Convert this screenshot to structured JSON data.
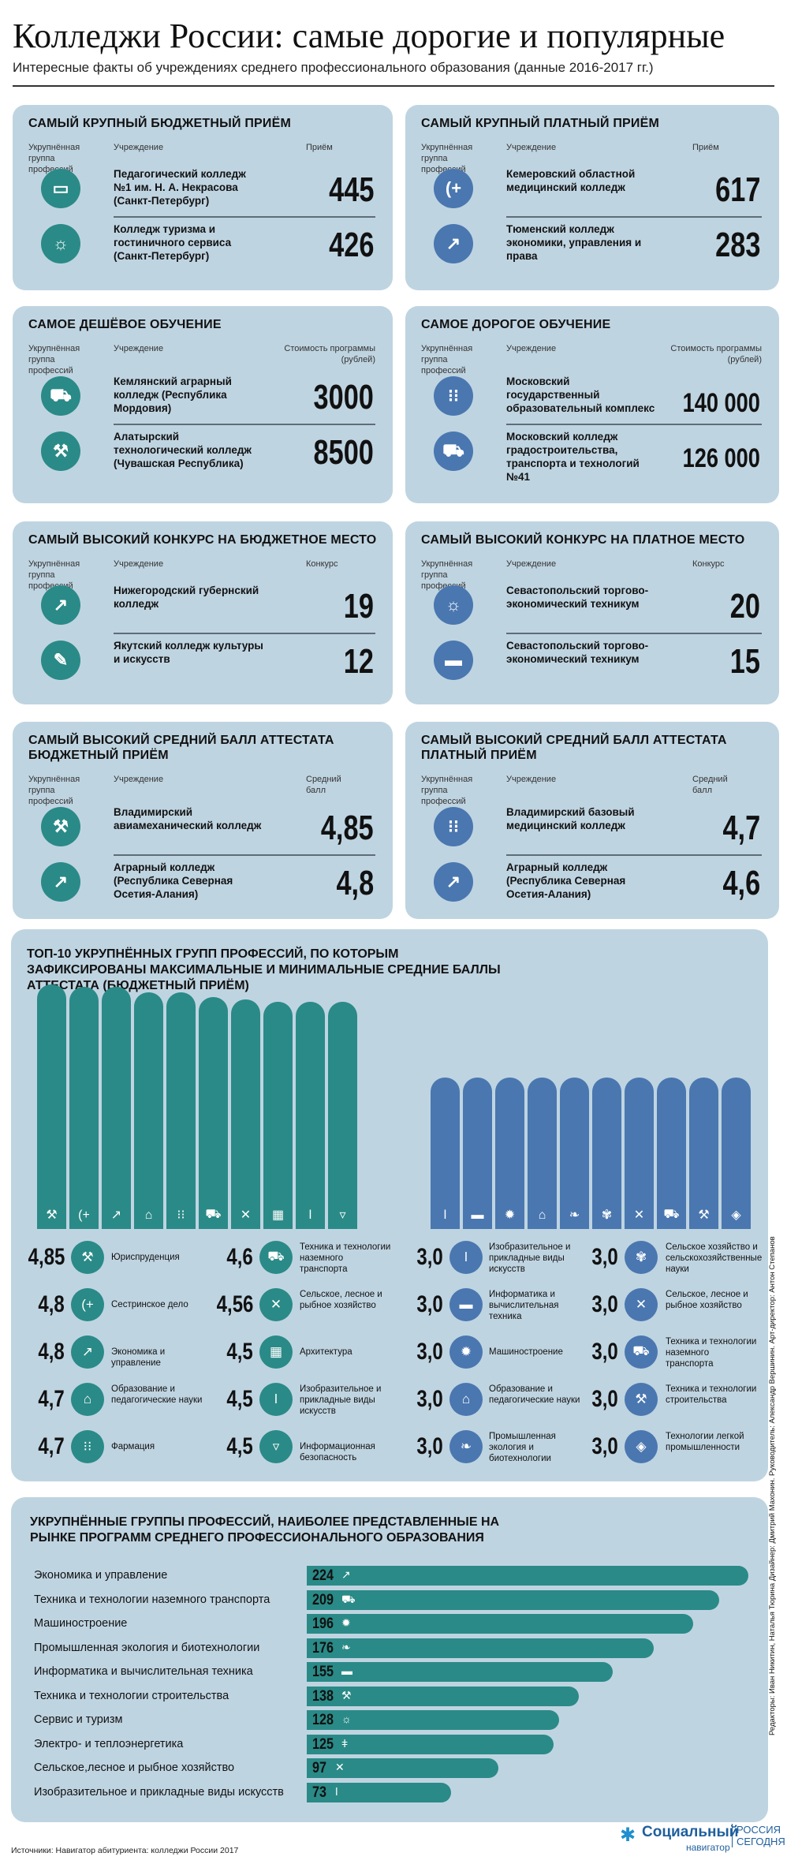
{
  "header": {
    "title": "Колледжи России: самые дорогие и популярные",
    "subtitle": "Интересные факты об учреждениях среднего профессионального образования (данные 2016-2017 гг.)"
  },
  "cards": [
    {
      "title": "САМЫЙ КРУПНЫЙ БЮДЖЕТНЫЙ ПРИЁМ",
      "col1": "Укрупнённая группа профессий",
      "col2": "Учреждение",
      "col3": "Приём",
      "rows": [
        {
          "icon": "book-icon",
          "glyph": "▭",
          "name": "Педагогический колледж №1 им. Н. А. Некрасова (Санкт-Петербург)",
          "value": "445"
        },
        {
          "icon": "sun-icon",
          "glyph": "☼",
          "name": "Колледж туризма и гостиничного сервиса (Санкт-Петербург)",
          "value": "426"
        }
      ]
    },
    {
      "title": "САМЫЙ КРУПНЫЙ ПЛАТНЫЙ ПРИЁМ",
      "col1": "Укрупнённая группа профессий",
      "col2": "Учреждение",
      "col3": "Приём",
      "rows": [
        {
          "icon": "medical-cross-icon",
          "glyph": "(+",
          "name": "Кемеровский областной медицинский колледж",
          "value": "617"
        },
        {
          "icon": "chart-icon",
          "glyph": "↗",
          "name": "Тюменский колледж экономики, управления и права",
          "value": "283"
        }
      ]
    },
    {
      "title": "САМОЕ ДЕШЁВОЕ ОБУЧЕНИЕ",
      "col1": "Укрупнённая группа профессий",
      "col2": "Учреждение",
      "col3": "Стоимость программы (рублей)",
      "rows": [
        {
          "icon": "tractor-icon",
          "glyph": "⛟",
          "name": "Кемлянский аграрный колледж (Республика Мордовия)",
          "value": "3000"
        },
        {
          "icon": "gavel-icon",
          "glyph": "⚒",
          "name": "Алатырский технологический колледж (Чувашская Республика)",
          "value": "8500"
        }
      ]
    },
    {
      "title": "САМОЕ ДОРОГОЕ ОБУЧЕНИЕ",
      "col1": "Укрупнённая группа профессий",
      "col2": "Учреждение",
      "col3": "Стоимость программы (рублей)",
      "rows": [
        {
          "icon": "pills-icon",
          "glyph": "⁝⁝",
          "name": "Московский государственный образовательный комплекс",
          "value": "140 000"
        },
        {
          "icon": "tractor-icon",
          "glyph": "⛟",
          "name": "Московский колледж градостроительства, транспорта и технологий №41",
          "value": "126 000"
        }
      ]
    },
    {
      "title": "САМЫЙ ВЫСОКИЙ КОНКУРС НА БЮДЖЕТНОЕ МЕСТО",
      "col1": "Укрупнённая группа профессий",
      "col2": "Учреждение",
      "col3": "Конкурс",
      "rows": [
        {
          "icon": "chart-icon",
          "glyph": "↗",
          "name": "Нижегородский губернский колледж",
          "value": "19"
        },
        {
          "icon": "art-icon",
          "glyph": "✎",
          "name": "Якутский колледж культуры и искусств",
          "value": "12"
        }
      ]
    },
    {
      "title": "САМЫЙ ВЫСОКИЙ КОНКУРС НА ПЛАТНОЕ МЕСТО",
      "col1": "Укрупнённая группа профессий",
      "col2": "Учреждение",
      "col3": "Конкурс",
      "rows": [
        {
          "icon": "sun-icon",
          "glyph": "☼",
          "name": "Севастопольский торгово-экономический техникум",
          "value": "20"
        },
        {
          "icon": "monitor-icon",
          "glyph": "▬",
          "name": "Севастопольский торгово-экономический техникум",
          "value": "15"
        }
      ]
    },
    {
      "title": "САМЫЙ ВЫСОКИЙ СРЕДНИЙ БАЛЛ АТТЕСТАТА БЮДЖЕТНЫЙ ПРИЁМ",
      "col1": "Укрупнённая группа профессий",
      "col2": "Учреждение",
      "col3": "Средний балл",
      "rows": [
        {
          "icon": "gavel-icon",
          "glyph": "⚒",
          "name": "Владимирский авиамеханический колледж",
          "value": "4,85"
        },
        {
          "icon": "chart-icon",
          "glyph": "↗",
          "name": "Аграрный колледж (Республика Северная Осетия-Алания)",
          "value": "4,8"
        }
      ]
    },
    {
      "title": "САМЫЙ ВЫСОКИЙ СРЕДНИЙ БАЛЛ АТТЕСТАТА ПЛАТНЫЙ ПРИЁМ",
      "col1": "Укрупнённая группа профессий",
      "col2": "Учреждение",
      "col3": "Средний балл",
      "rows": [
        {
          "icon": "pills-icon",
          "glyph": "⁝⁝",
          "name": "Владимирский базовый медицинский колледж",
          "value": "4,7"
        },
        {
          "icon": "chart-icon",
          "glyph": "↗",
          "name": "Аграрный колледж (Республика Северная Осетия-Алания)",
          "value": "4,6"
        }
      ]
    }
  ],
  "top10": {
    "title": "ТОП-10 УКРУПНЁННЫХ ГРУПП ПРОФЕССИЙ, ПО КОТОРЫМ ЗАФИКСИРОВАНЫ МАКСИМАЛЬНЫЕ И МИНИМАЛЬНЫЕ СРЕДНИЕ БАЛЛЫ АТТЕСТАТА (БЮДЖЕТНЫЙ ПРИЁМ)",
    "max": [
      {
        "value": "4,85",
        "label": "Юриспруденция",
        "icon": "gavel-icon",
        "glyph": "⚒"
      },
      {
        "value": "4,8",
        "label": "Сестринское дело",
        "icon": "medical-cross-icon",
        "glyph": "(+"
      },
      {
        "value": "4,8",
        "label": "Экономика и управление",
        "icon": "chart-icon",
        "glyph": "↗"
      },
      {
        "value": "4,7",
        "label": "Образование и педагогические науки",
        "icon": "house-icon",
        "glyph": "⌂"
      },
      {
        "value": "4,7",
        "label": "Фармация",
        "icon": "pills-icon",
        "glyph": "⁝⁝"
      },
      {
        "value": "4,6",
        "label": "Техника и технологии наземного транспорта",
        "icon": "tractor-icon",
        "glyph": "⛟"
      },
      {
        "value": "4,56",
        "label": "Сельское, лесное и рыбное хозяйство",
        "icon": "tools-icon",
        "glyph": "✕"
      },
      {
        "value": "4,5",
        "label": "Архитектура",
        "icon": "grid-icon",
        "glyph": "▦"
      },
      {
        "value": "4,5",
        "label": "Изобразительное и прикладные виды искусств",
        "icon": "brush-icon",
        "glyph": "ǀ"
      },
      {
        "value": "4,5",
        "label": "Информационная безопасность",
        "icon": "shield-icon",
        "glyph": "▿"
      }
    ],
    "min": [
      {
        "value": "3,0",
        "label": "Изобразительное и прикладные виды искусств",
        "icon": "brush-icon",
        "glyph": "ǀ"
      },
      {
        "value": "3,0",
        "label": "Информатика и вычислительная техника",
        "icon": "monitor-icon",
        "glyph": "▬"
      },
      {
        "value": "3,0",
        "label": "Машиностроение",
        "icon": "gear-icon",
        "glyph": "✹"
      },
      {
        "value": "3,0",
        "label": "Образование и педагогические науки",
        "icon": "house-icon",
        "glyph": "⌂"
      },
      {
        "value": "3,0",
        "label": "Промышленная экология и биотехнологии",
        "icon": "leaf-icon",
        "glyph": "❧"
      },
      {
        "value": "3,0",
        "label": "Сельское хозяйство и сельскохозяйственные науки",
        "icon": "wheat-icon",
        "glyph": "✾"
      },
      {
        "value": "3,0",
        "label": "Сельское, лесное и рыбное хозяйство",
        "icon": "tools-icon",
        "glyph": "✕"
      },
      {
        "value": "3,0",
        "label": "Техника и технологии наземного транспорта",
        "icon": "tractor-icon",
        "glyph": "⛟"
      },
      {
        "value": "3,0",
        "label": "Техника и технологии строительства",
        "icon": "hammers-icon",
        "glyph": "⚒"
      },
      {
        "value": "3,0",
        "label": "Технологии легкой промышленности",
        "icon": "fabric-icon",
        "glyph": "◈"
      }
    ],
    "colors": {
      "max": "#2a8a87",
      "min": "#4a77b0"
    }
  },
  "programs": {
    "title": "УКРУПНЁННЫЕ ГРУППЫ ПРОФЕССИЙ, НАИБОЛЕЕ ПРЕДСТАВЛЕННЫЕ НА РЫНКЕ ПРОГРАММ СРЕДНЕГО ПРОФЕССИОНАЛЬНОГО ОБРАЗОВАНИЯ",
    "items": [
      {
        "label": "Экономика и управление",
        "value": 224,
        "icon": "chart-icon",
        "glyph": "↗"
      },
      {
        "label": "Техника и технологии наземного транспорта",
        "value": 209,
        "icon": "tractor-icon",
        "glyph": "⛟"
      },
      {
        "label": "Машиностроение",
        "value": 196,
        "icon": "gear-icon",
        "glyph": "✹"
      },
      {
        "label": "Промышленная экология и биотехнологии",
        "value": 176,
        "icon": "leaf-icon",
        "glyph": "❧"
      },
      {
        "label": "Информатика и вычислительная техника",
        "value": 155,
        "icon": "monitor-icon",
        "glyph": "▬"
      },
      {
        "label": "Техника и технологии строительства",
        "value": 138,
        "icon": "hammers-icon",
        "glyph": "⚒"
      },
      {
        "label": "Сервис и туризм",
        "value": 128,
        "icon": "sun-icon",
        "glyph": "☼"
      },
      {
        "label": "Электро- и теплоэнергетика",
        "value": 125,
        "icon": "thermometer-icon",
        "glyph": "ǂ"
      },
      {
        "label": "Сельское,лесное и рыбное хозяйство",
        "value": 97,
        "icon": "tools-icon",
        "glyph": "✕"
      },
      {
        "label": "Изобразительное и прикладные виды искусств",
        "value": 73,
        "icon": "brush-icon",
        "glyph": "ǀ"
      }
    ]
  },
  "footer": {
    "source": "Источники: Навигатор абитуриента: колледжи России 2017",
    "credits": "Редакторы: Иван Никитин, Наталья Тюрина Дизайнер: Дмитрий Махонин. Руководитель: Александр Вершинин. Арт-директор: Антон Степанов",
    "logo_main": "Социальный",
    "logo_sub": "навигатор",
    "logo_brand": "РОССИЯ СЕГОДНЯ"
  }
}
